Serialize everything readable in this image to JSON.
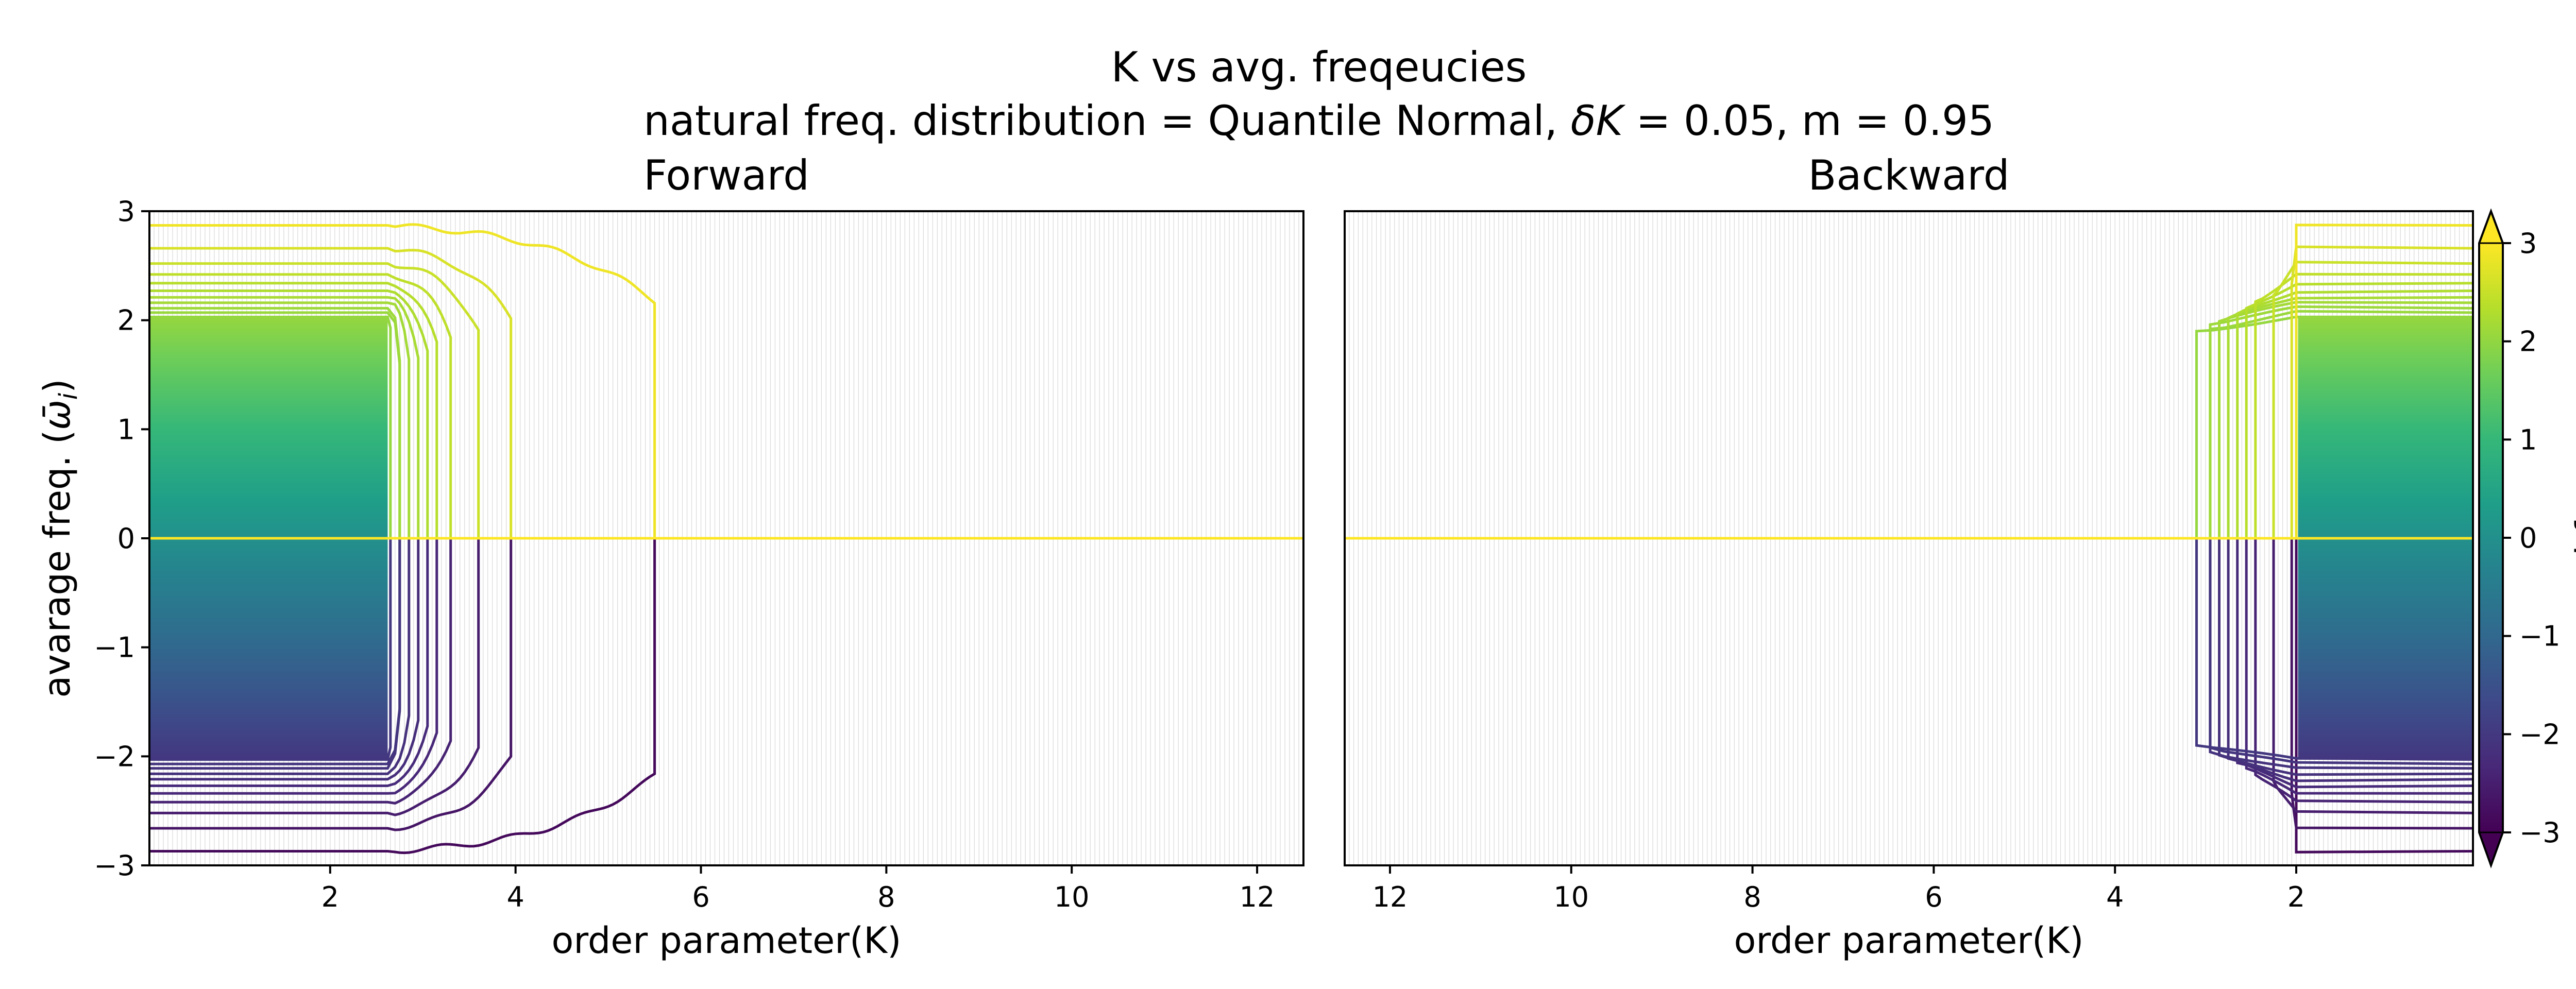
{
  "suptitle_line1": "K vs avg. freqeucies",
  "suptitle_line2_prefix": "natural freq. distribution = Quantile Normal, ",
  "suptitle_delta": "δK",
  "suptitle_line2_suffix": " = 0.05, m = 0.95",
  "colors": {
    "viridis": [
      "#440154",
      "#482878",
      "#3e4989",
      "#31688e",
      "#26828e",
      "#1f9e89",
      "#35b779",
      "#6ece58",
      "#b5de2b",
      "#fde725"
    ],
    "grid": "#d9d9d9",
    "axes": "#000000"
  },
  "chart_data": [
    {
      "type": "line",
      "panel": "Forward",
      "title": "Forward",
      "xlabel": "order parameter(K)",
      "ylabel_text": "avarage freq. (",
      "ylabel_math": "ω̄",
      "ylabel_sub": "i",
      "ylabel_close": ")",
      "xlim": [
        0.05,
        12.5
      ],
      "ylim": [
        -3,
        3
      ],
      "x_direction": "increasing",
      "xticks": [
        2,
        4,
        6,
        8,
        10,
        12
      ],
      "xtick_labels": [
        "2",
        "4",
        "6",
        "8",
        "10",
        "12"
      ],
      "yticks": [
        -3,
        -2,
        -1,
        0,
        1,
        2,
        3
      ],
      "ytick_labels": [
        "−3",
        "−2",
        "−1",
        "0",
        "1",
        "2",
        "3"
      ],
      "grid": "vertical lines at every K step (δK = 0.05)",
      "curves_lock_at_K": [
        2.65,
        2.75,
        2.85,
        2.95,
        3.05,
        3.15,
        3.3,
        3.45,
        3.6,
        3.75,
        3.95,
        4.3,
        4.75,
        5.5
      ],
      "description": "Each oscillator's average frequency stays at its natural frequency until the coupling K reaches its locking threshold, then drops to 0 (synchronized)."
    },
    {
      "type": "line",
      "panel": "Backward",
      "title": "Backward",
      "xlabel": "order parameter(K)",
      "xlim": [
        12.5,
        0.05
      ],
      "ylim": [
        -3,
        3
      ],
      "x_direction": "decreasing",
      "xticks": [
        12,
        10,
        8,
        6,
        4,
        2
      ],
      "xtick_labels": [
        "12",
        "10",
        "8",
        "6",
        "4",
        "2"
      ],
      "grid": "vertical lines at every K step (δK = 0.05)",
      "curves_unlock_at_K": [
        3.1,
        2.95,
        2.85,
        2.75,
        2.65,
        2.55,
        2.45,
        2.35,
        2.25,
        2.15,
        2.05,
        2.0
      ],
      "description": "All oscillators stay locked at 0 for large K; as K decreases they unlock and return to their natural frequencies."
    }
  ],
  "natural_frequencies": [
    -2.87,
    -2.66,
    -2.52,
    -2.42,
    -2.34,
    -2.27,
    -2.21,
    -2.16,
    -2.11,
    -2.07,
    -2.03,
    2.03,
    2.07,
    2.11,
    2.16,
    2.21,
    2.27,
    2.34,
    2.42,
    2.52,
    2.66,
    2.87
  ],
  "colorbar": {
    "label_text": "natural freq. ",
    "label_math": "ω",
    "label_sub": "i",
    "range": [
      -3,
      3
    ],
    "ticks": [
      -3,
      -2,
      -1,
      0,
      1,
      2,
      3
    ],
    "tick_labels": [
      "−3",
      "−2",
      "−1",
      "0",
      "1",
      "2",
      "3"
    ],
    "extend": "both"
  }
}
